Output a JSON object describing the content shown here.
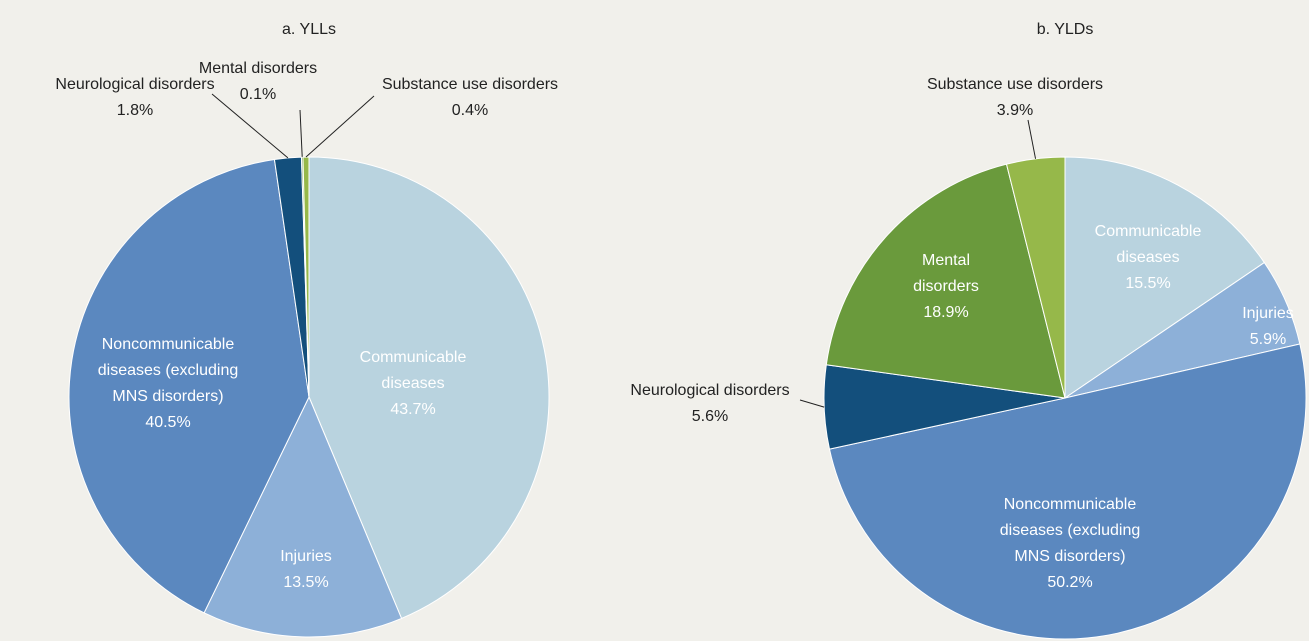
{
  "chart_data": [
    {
      "type": "pie",
      "title": "a. YLLs",
      "categories": [
        "Communicable diseases",
        "Injuries",
        "Noncommunicable diseases (excluding MNS disorders)",
        "Neurological disorders",
        "Mental disorders",
        "Substance use disorders"
      ],
      "values": [
        43.7,
        13.5,
        40.5,
        1.8,
        0.1,
        0.4
      ],
      "value_labels": [
        "43.7%",
        "13.5%",
        "40.5%",
        "1.8%",
        "0.1%",
        "0.4%"
      ],
      "colors": [
        "#b9d3df",
        "#8db0d8",
        "#5b88bf",
        "#134f7c",
        "#6a9a3c",
        "#96b84a"
      ]
    },
    {
      "type": "pie",
      "title": "b. YLDs",
      "categories": [
        "Communicable diseases",
        "Injuries",
        "Noncommunicable diseases (excluding MNS disorders)",
        "Neurological disorders",
        "Mental disorders",
        "Substance use disorders"
      ],
      "values": [
        15.5,
        5.9,
        50.2,
        5.6,
        18.9,
        3.9
      ],
      "value_labels": [
        "15.5%",
        "5.9%",
        "50.2%",
        "5.6%",
        "18.9%",
        "3.9%"
      ],
      "colors": [
        "#b9d3df",
        "#8db0d8",
        "#5b88bf",
        "#134f7c",
        "#6a9a3c",
        "#96b84a"
      ]
    }
  ]
}
